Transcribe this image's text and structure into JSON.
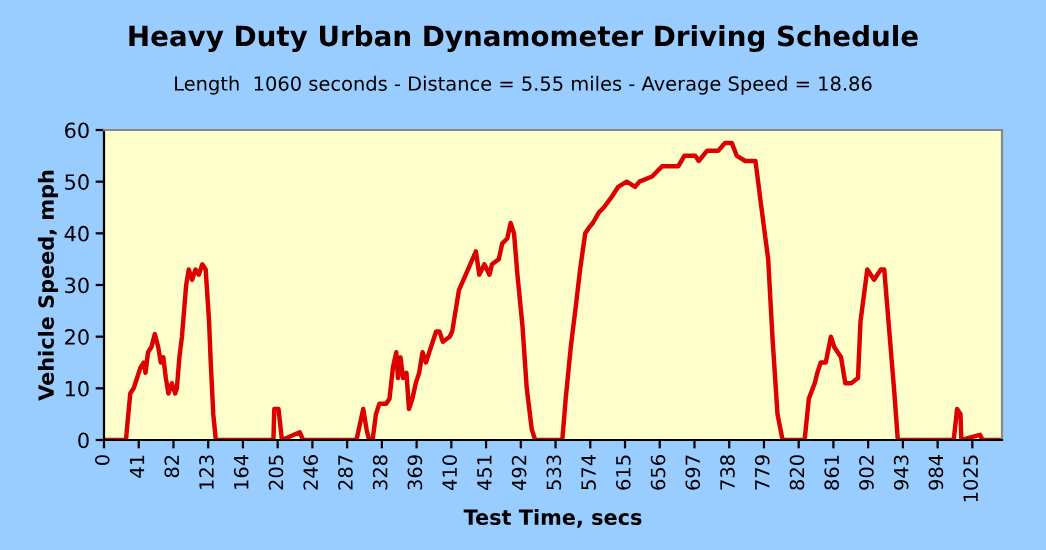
{
  "chart_data": {
    "type": "line",
    "title": "Heavy Duty Urban Dynamometer Driving Schedule",
    "subtitle": "Length  1060 seconds - Distance = 5.55 miles - Average Speed = 18.86",
    "xlabel": "Test Time, secs",
    "ylabel": "Vehicle Speed, mph",
    "series": [
      {
        "color": "#dd0000",
        "x": [
          0,
          26,
          27,
          31,
          35,
          39,
          43,
          47,
          49,
          52,
          56,
          60,
          64,
          67,
          70,
          73,
          76,
          80,
          84,
          86,
          89,
          92,
          95,
          97,
          100,
          104,
          108,
          112,
          116,
          120,
          124,
          126,
          129,
          132,
          172,
          196,
          200,
          201,
          206,
          208,
          210,
          231,
          235,
          298,
          302,
          306,
          310,
          313,
          317,
          321,
          325,
          333,
          337,
          341,
          345,
          347,
          350,
          353,
          357,
          360,
          364,
          368,
          372,
          376,
          380,
          384,
          392,
          396,
          400,
          408,
          411,
          419,
          427,
          435,
          439,
          443,
          449,
          455,
          458,
          466,
          470,
          476,
          480,
          484,
          488,
          494,
          499,
          505,
          509,
          541,
          545,
          551,
          557,
          562,
          568,
          572,
          577,
          584,
          590,
          599,
          607,
          617,
          627,
          632,
          647,
          659,
          670,
          678,
          685,
          698,
          702,
          712,
          725,
          733,
          741,
          747,
          757,
          769,
          776,
          784,
          789,
          795,
          801,
          827,
          832,
          839,
          842,
          846,
          852,
          858,
          862,
          870,
          875,
          882,
          890,
          893,
          901,
          909,
          917,
          921,
          925,
          933,
          937,
          1003,
          1007,
          1011,
          1012,
          1034,
          1037,
          1058
        ],
        "values": [
          0,
          0,
          2,
          9,
          10,
          12,
          14,
          15,
          13,
          17,
          18,
          20.5,
          18,
          15,
          16,
          12,
          9,
          11,
          9,
          10,
          16,
          20,
          26,
          30,
          33,
          31,
          33,
          32,
          34,
          33,
          23,
          15,
          5,
          0,
          0,
          0,
          0,
          6,
          6,
          3,
          0,
          1.5,
          0,
          0,
          3,
          6,
          2,
          0,
          0,
          5,
          7,
          7,
          8,
          14,
          17,
          12,
          16,
          12,
          13,
          6,
          8,
          11,
          13,
          17,
          15,
          17,
          21,
          21,
          19,
          20,
          21,
          29,
          32,
          35,
          36.5,
          32,
          34,
          32,
          34,
          35,
          38,
          39,
          42,
          40,
          32,
          22,
          10,
          2,
          0,
          0,
          8,
          18,
          26,
          33,
          40,
          41,
          42,
          44,
          45,
          47,
          49,
          50,
          49,
          50,
          51,
          53,
          53,
          53,
          55,
          55,
          54,
          56,
          56,
          57.5,
          57.5,
          55,
          54,
          54,
          45,
          35,
          20,
          5,
          0,
          0,
          8,
          11,
          13,
          15,
          15,
          20,
          18,
          16,
          11,
          11,
          12,
          23,
          33,
          31,
          33,
          33,
          25,
          9,
          0,
          0,
          6,
          5,
          0,
          1,
          0,
          0
        ]
      }
    ],
    "xlim": [
      0,
      1060
    ],
    "xticks": [
      0,
      41,
      82,
      123,
      164,
      205,
      246,
      287,
      328,
      369,
      410,
      451,
      492,
      533,
      574,
      615,
      656,
      697,
      738,
      779,
      820,
      861,
      902,
      943,
      984,
      1025
    ],
    "ylim": [
      0,
      60
    ],
    "yticks": [
      0,
      10,
      20,
      30,
      40,
      50,
      60
    ],
    "grid": false,
    "legend": false,
    "marker": "none",
    "line_style": "solid"
  }
}
